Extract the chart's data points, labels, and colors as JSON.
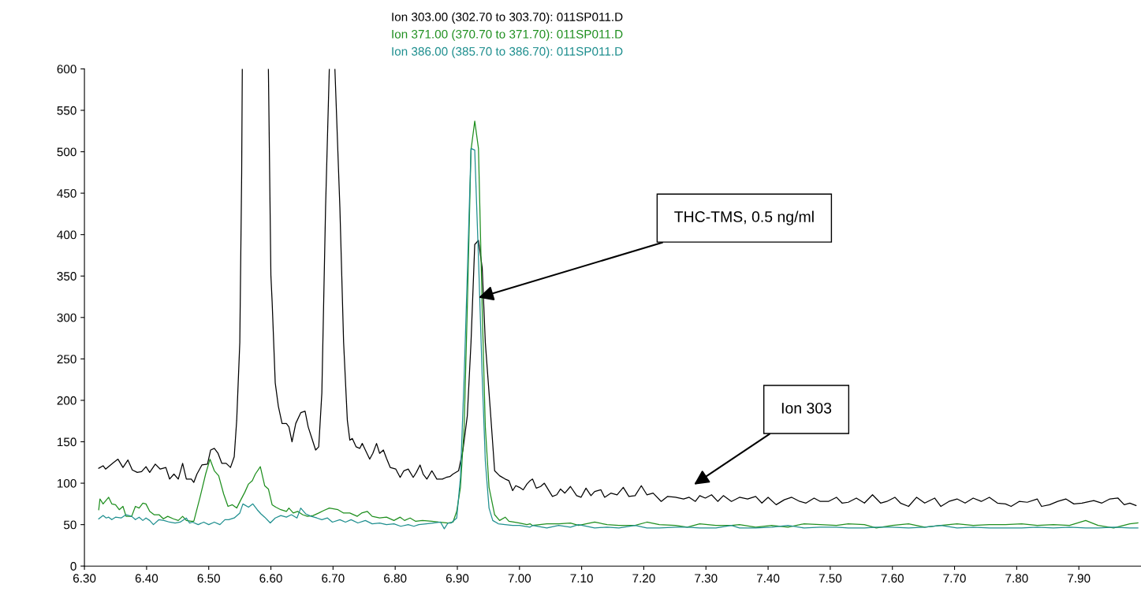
{
  "chart_data": {
    "type": "line",
    "xlim": [
      6.3,
      8.0
    ],
    "ylim": [
      0,
      600
    ],
    "xticks": [
      {
        "value": 6.3,
        "label": "6.30"
      },
      {
        "value": 6.4,
        "label": "6.40"
      },
      {
        "value": 6.5,
        "label": "6.50"
      },
      {
        "value": 6.6,
        "label": "6.60"
      },
      {
        "value": 6.7,
        "label": "6.70"
      },
      {
        "value": 6.8,
        "label": "6.80"
      },
      {
        "value": 6.9,
        "label": "6.90"
      },
      {
        "value": 7.0,
        "label": "7.00"
      },
      {
        "value": 7.1,
        "label": "7.10"
      },
      {
        "value": 7.2,
        "label": "7.20"
      },
      {
        "value": 7.3,
        "label": "7.30"
      },
      {
        "value": 7.4,
        "label": "7.40"
      },
      {
        "value": 7.5,
        "label": "7.50"
      },
      {
        "value": 7.6,
        "label": "7.60"
      },
      {
        "value": 7.7,
        "label": "7.70"
      },
      {
        "value": 7.8,
        "label": "7.80"
      },
      {
        "value": 7.9,
        "label": "7.90"
      }
    ],
    "yticks": [
      0,
      50,
      100,
      150,
      200,
      250,
      300,
      350,
      400,
      450,
      500,
      550,
      600
    ],
    "grid": false,
    "legend": "top",
    "marker": "none",
    "line_style": "solid",
    "annotations": [
      "THC-TMS, 0.5 ng/ml",
      "Ion 303"
    ],
    "series": [
      {
        "name": "Ion 303.00 (302.70 to 303.70): 011SP011.D",
        "color": "#000000",
        "x": [
          6.323,
          6.33,
          6.334,
          6.342,
          6.347,
          6.354,
          6.362,
          6.37,
          6.377,
          6.385,
          6.392,
          6.399,
          6.405,
          6.414,
          6.422,
          6.431,
          6.437,
          6.444,
          6.451,
          6.458,
          6.464,
          6.472,
          6.476,
          6.481,
          6.489,
          6.498,
          6.503,
          6.509,
          6.515,
          6.521,
          6.528,
          6.535,
          6.541,
          6.545,
          6.55,
          6.553,
          6.554,
          6.575,
          6.596,
          6.6,
          6.602,
          6.607,
          6.612,
          6.618,
          6.625,
          6.629,
          6.634,
          6.64,
          6.648,
          6.655,
          6.66,
          6.666,
          6.672,
          6.677,
          6.682,
          6.688,
          6.694,
          6.699,
          6.703,
          6.711,
          6.717,
          6.723,
          6.727,
          6.731,
          6.737,
          6.743,
          6.747,
          6.752,
          6.759,
          6.764,
          6.77,
          6.775,
          6.781,
          6.786,
          6.792,
          6.801,
          6.808,
          6.814,
          6.821,
          6.829,
          6.834,
          6.84,
          6.845,
          6.851,
          6.859,
          6.867,
          6.876,
          6.882,
          6.888,
          6.893,
          6.902,
          6.909,
          6.916,
          6.922,
          6.928,
          6.934,
          6.94,
          6.945,
          6.953,
          6.96,
          6.968,
          6.977,
          6.983,
          6.989,
          6.994,
          7.0,
          7.006,
          7.012,
          7.017,
          7.021,
          7.027,
          7.034,
          7.04,
          7.053,
          7.06,
          7.066,
          7.073,
          7.082,
          7.092,
          7.099,
          7.107,
          7.115,
          7.121,
          7.131,
          7.137,
          7.147,
          7.157,
          7.167,
          7.176,
          7.186,
          7.196,
          7.205,
          7.215,
          7.228,
          7.238,
          7.251,
          7.264,
          7.273,
          7.283,
          7.29,
          7.299,
          7.309,
          7.319,
          7.328,
          7.341,
          7.354,
          7.367,
          7.38,
          7.39,
          7.4,
          7.413,
          7.426,
          7.438,
          7.451,
          7.461,
          7.474,
          7.484,
          7.497,
          7.51,
          7.519,
          7.529,
          7.542,
          7.555,
          7.568,
          7.581,
          7.591,
          7.604,
          7.613,
          7.626,
          7.639,
          7.652,
          7.668,
          7.678,
          7.691,
          7.704,
          7.717,
          7.73,
          7.743,
          7.756,
          7.769,
          7.782,
          7.791,
          7.804,
          7.817,
          7.833,
          7.84,
          7.853,
          7.866,
          7.879,
          7.892,
          7.905,
          7.924,
          7.937,
          7.95,
          7.963,
          7.973,
          7.982,
          7.992
        ],
        "values": [
          118,
          121,
          117,
          122,
          125,
          129,
          119,
          128,
          116,
          113,
          114,
          120,
          113,
          123,
          117,
          119,
          105,
          111,
          105,
          124,
          105,
          105,
          101,
          111,
          122,
          123,
          140,
          142,
          136,
          124,
          124,
          119,
          132,
          176,
          270,
          474,
          600,
          null,
          600,
          351,
          319,
          221,
          193,
          172,
          172,
          168,
          150,
          172,
          185,
          187,
          168,
          154,
          140,
          144,
          209,
          433,
          600,
          null,
          600,
          433,
          270,
          176,
          152,
          154,
          144,
          142,
          148,
          140,
          129,
          136,
          148,
          136,
          140,
          130,
          119,
          117,
          107,
          115,
          117,
          107,
          113,
          122,
          111,
          105,
          115,
          105,
          105,
          107,
          108,
          111,
          115,
          140,
          181,
          270,
          388,
          393,
          360,
          270,
          189,
          115,
          109,
          105,
          103,
          91,
          97,
          95,
          92,
          99,
          103,
          105,
          94,
          96,
          100,
          84,
          86,
          93,
          88,
          96,
          85,
          83,
          94,
          85,
          90,
          92,
          83,
          88,
          86,
          95,
          84,
          85,
          97,
          86,
          88,
          78,
          84,
          83,
          81,
          83,
          78,
          85,
          82,
          86,
          78,
          85,
          78,
          83,
          81,
          84,
          76,
          83,
          74,
          80,
          83,
          78,
          76,
          82,
          78,
          78,
          83,
          76,
          77,
          82,
          76,
          86,
          76,
          78,
          83,
          76,
          72,
          83,
          76,
          82,
          72,
          78,
          81,
          76,
          82,
          78,
          83,
          76,
          75,
          72,
          78,
          77,
          81,
          72,
          74,
          78,
          81,
          75,
          76,
          79,
          76,
          81,
          82,
          74,
          76,
          73
        ]
      },
      {
        "name": "Ion 371.00 (370.70 to 371.70): 011SP011.D",
        "color": "#1f8f1f",
        "x": [
          6.323,
          6.325,
          6.33,
          6.339,
          6.344,
          6.35,
          6.356,
          6.362,
          6.367,
          6.376,
          6.382,
          6.388,
          6.394,
          6.399,
          6.405,
          6.412,
          6.42,
          6.427,
          6.434,
          6.443,
          6.451,
          6.458,
          6.464,
          6.472,
          6.476,
          6.486,
          6.495,
          6.502,
          6.509,
          6.516,
          6.524,
          6.531,
          6.538,
          6.545,
          6.551,
          6.558,
          6.564,
          6.57,
          6.575,
          6.583,
          6.59,
          6.596,
          6.602,
          6.608,
          6.616,
          6.625,
          6.629,
          6.636,
          6.643,
          6.651,
          6.659,
          6.668,
          6.677,
          6.685,
          6.694,
          6.708,
          6.717,
          6.727,
          6.739,
          6.746,
          6.755,
          6.763,
          6.775,
          6.786,
          6.798,
          6.808,
          6.815,
          6.824,
          6.833,
          6.844,
          6.859,
          6.87,
          6.885,
          6.893,
          6.899,
          6.905,
          6.911,
          6.916,
          6.922,
          6.928,
          6.934,
          6.94,
          6.945,
          6.951,
          6.96,
          6.968,
          6.977,
          6.983,
          6.991,
          7.0,
          7.012,
          7.017,
          7.021,
          7.044,
          7.063,
          7.082,
          7.095,
          7.121,
          7.141,
          7.16,
          7.186,
          7.205,
          7.225,
          7.251,
          7.27,
          7.29,
          7.316,
          7.341,
          7.354,
          7.38,
          7.406,
          7.432,
          7.458,
          7.484,
          7.51,
          7.529,
          7.555,
          7.574,
          7.6,
          7.626,
          7.652,
          7.678,
          7.704,
          7.73,
          7.756,
          7.782,
          7.808,
          7.833,
          7.859,
          7.885,
          7.911,
          7.931,
          7.956,
          7.982,
          7.995
        ],
        "values": [
          68,
          81,
          75,
          83,
          75,
          74,
          68,
          72,
          60,
          60,
          72,
          70,
          76,
          75,
          66,
          62,
          62,
          57,
          60,
          57,
          55,
          60,
          55,
          54,
          54,
          83,
          111,
          129,
          115,
          109,
          87,
          72,
          74,
          70,
          79,
          89,
          99,
          103,
          111,
          120,
          97,
          93,
          74,
          71,
          68,
          66,
          70,
          64,
          66,
          62,
          60,
          61,
          64,
          67,
          70,
          68,
          64,
          64,
          60,
          64,
          66,
          60,
          58,
          59,
          55,
          59,
          55,
          58,
          54,
          55,
          54,
          53,
          52,
          53,
          66,
          95,
          168,
          311,
          502,
          537,
          504,
          311,
          168,
          95,
          62,
          55,
          59,
          54,
          53,
          52,
          50,
          51,
          49,
          51,
          51,
          52,
          49,
          53,
          50,
          49,
          49,
          53,
          50,
          49,
          47,
          51,
          49,
          49,
          50,
          47,
          49,
          47,
          51,
          50,
          49,
          51,
          50,
          46,
          49,
          51,
          47,
          49,
          51,
          49,
          50,
          50,
          51,
          49,
          50,
          49,
          55,
          49,
          46,
          51,
          52
        ]
      },
      {
        "name": "Ion 386.00 (385.70 to 386.70): 011SP011.D",
        "color": "#1f8f8f",
        "x": [
          6.323,
          6.33,
          6.335,
          6.339,
          6.344,
          6.35,
          6.359,
          6.367,
          6.376,
          6.382,
          6.388,
          6.394,
          6.399,
          6.405,
          6.411,
          6.42,
          6.428,
          6.437,
          6.446,
          6.454,
          6.464,
          6.469,
          6.474,
          6.483,
          6.492,
          6.5,
          6.509,
          6.518,
          6.526,
          6.532,
          6.541,
          6.55,
          6.555,
          6.564,
          6.571,
          6.578,
          6.584,
          6.59,
          6.599,
          6.607,
          6.616,
          6.625,
          6.633,
          6.642,
          6.648,
          6.656,
          6.665,
          6.674,
          6.682,
          6.691,
          6.699,
          6.711,
          6.72,
          6.729,
          6.74,
          6.752,
          6.763,
          6.775,
          6.786,
          6.798,
          6.809,
          6.821,
          6.83,
          6.838,
          6.85,
          6.861,
          6.873,
          6.879,
          6.885,
          6.89,
          6.899,
          6.905,
          6.911,
          6.916,
          6.922,
          6.928,
          6.934,
          6.94,
          6.945,
          6.951,
          6.957,
          6.966,
          6.977,
          6.989,
          7.0,
          7.017,
          7.021,
          7.044,
          7.063,
          7.082,
          7.095,
          7.121,
          7.141,
          7.16,
          7.186,
          7.205,
          7.225,
          7.251,
          7.27,
          7.29,
          7.316,
          7.341,
          7.354,
          7.38,
          7.406,
          7.432,
          7.458,
          7.484,
          7.51,
          7.529,
          7.555,
          7.574,
          7.6,
          7.626,
          7.652,
          7.678,
          7.704,
          7.73,
          7.756,
          7.782,
          7.808,
          7.833,
          7.859,
          7.885,
          7.911,
          7.931,
          7.956,
          7.982,
          7.995
        ],
        "values": [
          57,
          61,
          58,
          59,
          56,
          59,
          58,
          62,
          60,
          56,
          59,
          55,
          58,
          55,
          50,
          56,
          55,
          53,
          52,
          53,
          58,
          52,
          53,
          50,
          53,
          50,
          53,
          50,
          56,
          56,
          58,
          64,
          75,
          71,
          75,
          68,
          63,
          59,
          52,
          58,
          61,
          59,
          62,
          58,
          70,
          63,
          60,
          58,
          56,
          58,
          53,
          56,
          53,
          56,
          52,
          55,
          51,
          52,
          50,
          51,
          48,
          50,
          48,
          50,
          51,
          52,
          53,
          45,
          52,
          52,
          58,
          107,
          229,
          351,
          504,
          502,
          372,
          229,
          127,
          70,
          55,
          51,
          50,
          49,
          49,
          47,
          49,
          46,
          49,
          47,
          50,
          46,
          47,
          46,
          49,
          46,
          46,
          47,
          47,
          46,
          46,
          49,
          46,
          46,
          47,
          49,
          46,
          47,
          47,
          46,
          46,
          47,
          47,
          46,
          47,
          49,
          46,
          47,
          46,
          46,
          46,
          47,
          46,
          47,
          46,
          46,
          47,
          46,
          46
        ]
      }
    ]
  }
}
